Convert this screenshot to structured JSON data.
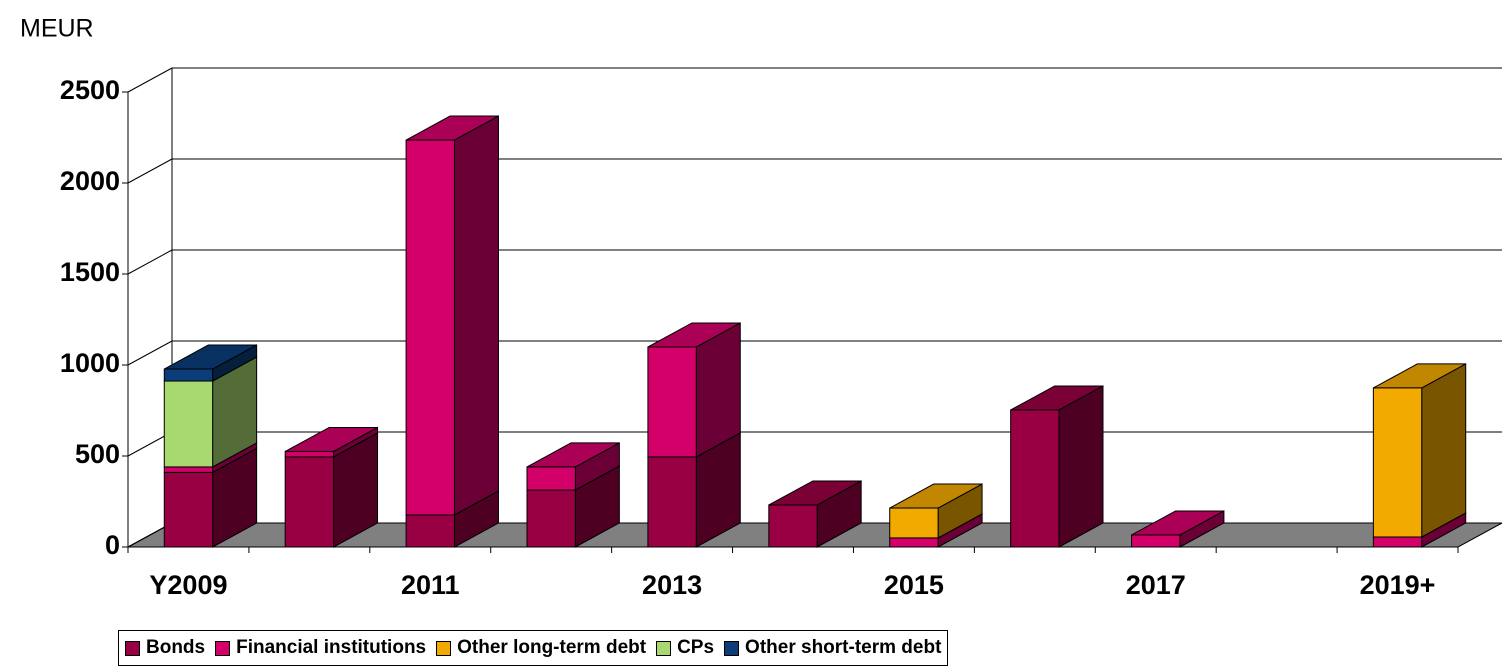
{
  "chart_data": {
    "type": "bar3d_stacked",
    "y_label": "MEUR",
    "categories": [
      "Y2009",
      null,
      "2011",
      null,
      "2013",
      null,
      "2015",
      null,
      "2017",
      null,
      "2019+"
    ],
    "series": [
      {
        "name": "Bonds",
        "color": "#990044",
        "values": [
          410,
          495,
          176,
          313,
          495,
          231,
          0,
          753,
          0,
          0,
          0
        ]
      },
      {
        "name": "Financial institutions",
        "color": "#d4006a",
        "values": [
          30,
          30,
          2060,
          127,
          604,
          0,
          50,
          0,
          66,
          0,
          55
        ]
      },
      {
        "name": "Other long-term debt",
        "color": "#f2a900",
        "values": [
          0,
          0,
          0,
          0,
          0,
          0,
          164,
          0,
          0,
          0,
          819
        ]
      },
      {
        "name": "CPs",
        "color": "#a8d870",
        "values": [
          472,
          0,
          0,
          0,
          0,
          0,
          0,
          0,
          0,
          0,
          0
        ]
      },
      {
        "name": "Other short-term debt",
        "color": "#0a3d7a",
        "values": [
          66,
          0,
          0,
          0,
          0,
          0,
          0,
          0,
          0,
          0,
          0
        ]
      }
    ],
    "ylim": [
      0,
      2500
    ],
    "yticks": [
      0,
      500,
      1000,
      1500,
      2000,
      2500
    ],
    "grid": true
  }
}
